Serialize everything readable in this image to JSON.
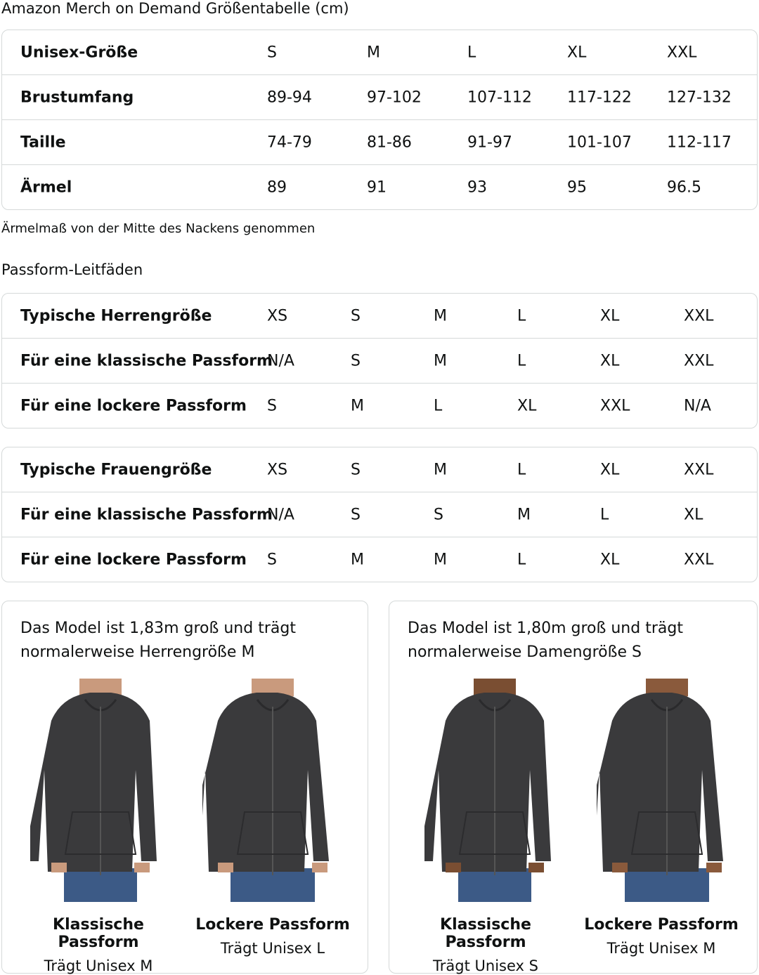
{
  "title": "Amazon Merch on Demand Größentabelle (cm)",
  "size_table": {
    "rows": [
      {
        "label": "Unisex-Größe",
        "values": [
          "S",
          "M",
          "L",
          "XL",
          "XXL"
        ]
      },
      {
        "label": "Brustumfang",
        "values": [
          "89-94",
          "97-102",
          "107-112",
          "117-122",
          "127-132"
        ]
      },
      {
        "label": "Taille",
        "values": [
          "74-79",
          "81-86",
          "91-97",
          "101-107",
          "112-117"
        ]
      },
      {
        "label": "Ärmel",
        "values": [
          "89",
          "91",
          "93",
          "95",
          "96.5"
        ]
      }
    ]
  },
  "note": "Ärmelmaß von der Mitte des Nackens genommen",
  "fit_heading": "Passform-Leitfäden",
  "men_table": {
    "rows": [
      {
        "label": "Typische Herrengröße",
        "values": [
          "XS",
          "S",
          "M",
          "L",
          "XL",
          "XXL"
        ]
      },
      {
        "label": "Für eine klassische Passform",
        "values": [
          "N/A",
          "S",
          "M",
          "L",
          "XL",
          "XXL"
        ]
      },
      {
        "label": "Für eine lockere Passform",
        "values": [
          "S",
          "M",
          "L",
          "XL",
          "XXL",
          "N/A"
        ]
      }
    ]
  },
  "women_table": {
    "rows": [
      {
        "label": "Typische Frauengröße",
        "values": [
          "XS",
          "S",
          "M",
          "L",
          "XL",
          "XXL"
        ]
      },
      {
        "label": "Für eine klassische Passform",
        "values": [
          "N/A",
          "S",
          "S",
          "M",
          "L",
          "XL"
        ]
      },
      {
        "label": "Für eine lockere Passform",
        "values": [
          "S",
          "M",
          "M",
          "L",
          "XL",
          "XXL"
        ]
      }
    ]
  },
  "cards": [
    {
      "desc": "Das Model ist 1,83m groß und trägt normalerweise Herrengröße M",
      "figures": [
        {
          "title": "Klassische Passform",
          "note": "Trägt Unisex M"
        },
        {
          "title": "Lockere Passform",
          "note": "Trägt Unisex L"
        }
      ]
    },
    {
      "desc": "Das Model ist 1,80m groß und trägt normalerweise Damengröße S",
      "figures": [
        {
          "title": "Klassische Passform",
          "note": "Trägt Unisex S"
        },
        {
          "title": "Lockere Passform",
          "note": "Trägt Unisex M"
        }
      ]
    }
  ]
}
